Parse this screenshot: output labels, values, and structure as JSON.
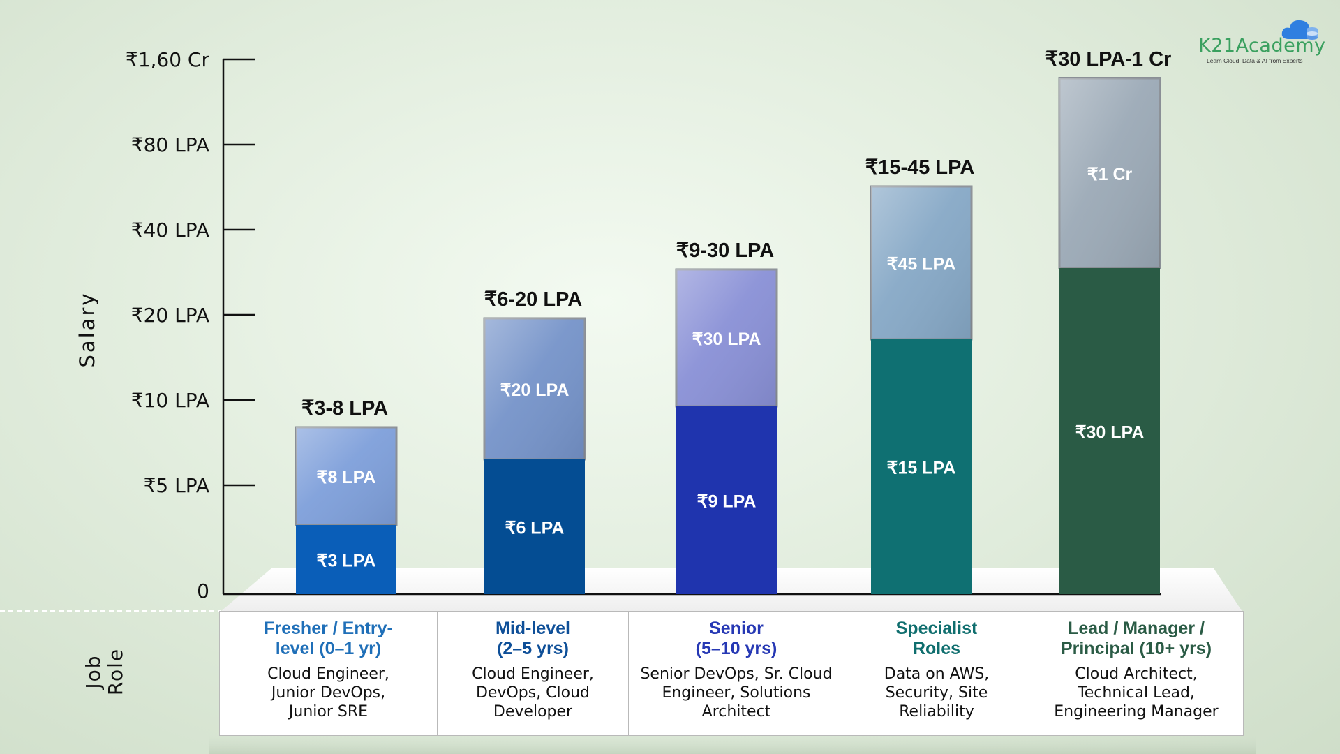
{
  "chart_data": {
    "type": "bar",
    "stacked": true,
    "ylabel": "Salary",
    "row_label": "Job Role",
    "y_ticks": [
      "₹1,60 Cr",
      "₹80 LPA",
      "₹40 LPA",
      "₹20 LPA",
      "₹10 LPA",
      "₹5 LPA",
      "0"
    ],
    "categories": [
      {
        "title": "Fresher / Entry-\nlevel (0–1 yr)",
        "roles": "Cloud Engineer,\nJunior DevOps,\nJunior SRE",
        "range_label": "₹3-8 LPA",
        "low_label": "₹3 LPA",
        "high_label": "₹8 LPA",
        "low_value": 3,
        "high_value": 8,
        "low_color": "#0a5eb8",
        "high_color": "#7e9fda",
        "title_color": "#1f6fb8"
      },
      {
        "title": "Mid-level\n(2–5 yrs)",
        "roles": "Cloud Engineer,\nDevOps, Cloud\nDeveloper",
        "range_label": "₹6-20 LPA",
        "low_label": "₹6 LPA",
        "high_label": "₹20 LPA",
        "low_value": 6,
        "high_value": 20,
        "low_color": "#044d93",
        "high_color": "#7593c9",
        "title_color": "#0e4f98"
      },
      {
        "title": "Senior\n(5–10 yrs)",
        "roles": "Senior DevOps, Sr. Cloud\nEngineer, Solutions\nArchitect",
        "range_label": "₹9-30 LPA",
        "low_label": "₹9 LPA",
        "high_label": "₹30 LPA",
        "low_value": 9,
        "high_value": 30,
        "low_color": "#1f34ae",
        "high_color": "#8990d6",
        "title_color": "#2638b4"
      },
      {
        "title": "Specialist\nRoles",
        "roles": "Data on AWS,\nSecurity, Site\nReliability",
        "range_label": "₹15-45 LPA",
        "low_label": "₹15 LPA",
        "high_label": "₹45 LPA",
        "low_value": 15,
        "high_value": 45,
        "low_color": "#0f7072",
        "high_color": "#86a8c6",
        "title_color": "#0f6e6e"
      },
      {
        "title": "Lead / Manager /\nPrincipal (10+ yrs)",
        "roles": "Cloud Architect,\nTechnical Lead,\nEngineering Manager",
        "range_label": "₹30 LPA-1 Cr",
        "low_label": "₹30 LPA",
        "high_label": "₹1 Cr",
        "low_value": 30,
        "high_value": 100,
        "low_color": "#2a5b45",
        "high_color": "#9ba9b6",
        "title_color": "#2a5b45"
      }
    ]
  },
  "logo": {
    "name": "K21Academy",
    "tagline": "Learn Cloud, Data & AI from Experts"
  }
}
